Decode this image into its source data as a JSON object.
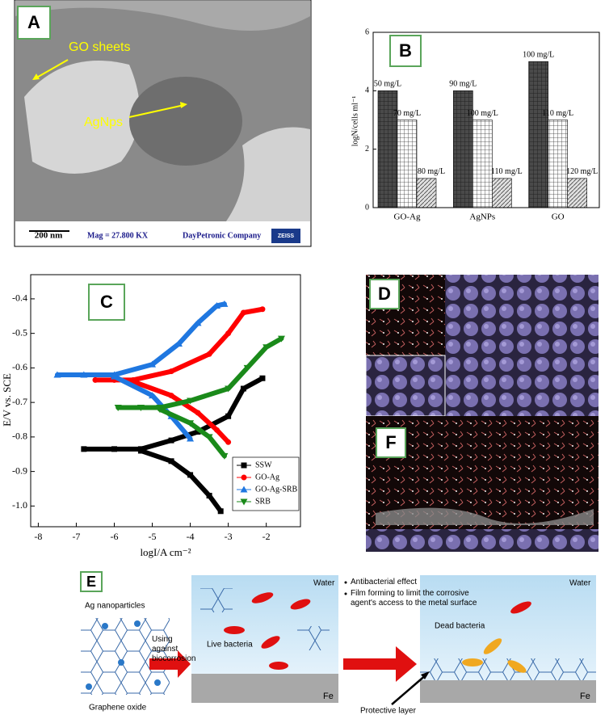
{
  "panel_a": {
    "label": "A",
    "annotations": [
      "GO sheets",
      "AgNps"
    ],
    "scale_bar": "200 nm",
    "magnification": "Mag = 27.800 KX",
    "company": "DayPetronic Company",
    "logo": "ZEISS"
  },
  "chart_data": [
    {
      "type": "bar",
      "label": "B",
      "ylabel": "logN/cells ml⁻¹",
      "categories": [
        "GO-Ag",
        "AgNPs",
        "GO"
      ],
      "series": [
        {
          "color": "#4a4a4a",
          "values": [
            4,
            4,
            5
          ],
          "labels": [
            "50 mg/L",
            "90 mg/L",
            "100 mg/L"
          ]
        },
        {
          "color": "#ffffff",
          "values": [
            3,
            3,
            3
          ],
          "labels": [
            "70 mg/L",
            "100 mg/L",
            "110 mg/L"
          ]
        },
        {
          "color": "#d8d8d8",
          "values": [
            1,
            1,
            1
          ],
          "labels": [
            "80 mg/L",
            "110 mg/L",
            "120 mg/L"
          ]
        }
      ],
      "ylim": [
        0,
        6
      ],
      "yticks": [
        0,
        2,
        4,
        6
      ]
    },
    {
      "type": "line",
      "label": "C",
      "xlabel": "logI/A cm⁻²",
      "ylabel": "E/V vs. SCE",
      "xlim": [
        -8.2,
        -1.1
      ],
      "xticks": [
        -8,
        -7,
        -6,
        -5,
        -4,
        -3,
        -2
      ],
      "ylim": [
        -1.06,
        -0.33
      ],
      "yticks": [
        {
          "value": -1,
          "label": "-1.0"
        },
        -0.9,
        -0.8,
        -0.7,
        -0.6,
        -0.5,
        -0.4
      ],
      "legend": "lower right",
      "series": [
        {
          "name": "SSW",
          "color": "#000000",
          "marker": "square",
          "x": [
            -6.8,
            -6.0,
            -5.3,
            -4.5,
            -3.8,
            -3.0,
            -2.6,
            -2.1,
            null,
            -5.3,
            -4.5,
            -4.0,
            -3.5,
            -3.2
          ],
          "values": [
            -0.835,
            -0.835,
            -0.835,
            -0.81,
            -0.785,
            -0.74,
            -0.66,
            -0.63,
            null,
            -0.84,
            -0.87,
            -0.91,
            -0.97,
            -1.015
          ]
        },
        {
          "name": "GO-Ag",
          "color": "#ff0000",
          "marker": "circle",
          "x": [
            -6.5,
            -6.0,
            -5.5,
            -4.5,
            -3.5,
            -3.0,
            -2.6,
            -2.1,
            null,
            -5.5,
            -4.5,
            -3.8,
            -3.3,
            -3.0
          ],
          "values": [
            -0.635,
            -0.635,
            -0.635,
            -0.61,
            -0.56,
            -0.5,
            -0.44,
            -0.43,
            null,
            -0.64,
            -0.68,
            -0.73,
            -0.78,
            -0.815
          ]
        },
        {
          "name": "GO-Ag-SRB",
          "color": "#1f77e0",
          "marker": "triangle",
          "x": [
            -7.5,
            -6.8,
            -6.0,
            -5.0,
            -4.3,
            -3.8,
            -3.3,
            -3.1,
            null,
            -6.0,
            -5.0,
            -4.5,
            -4.0
          ],
          "values": [
            -0.62,
            -0.62,
            -0.62,
            -0.59,
            -0.53,
            -0.47,
            -0.42,
            -0.415,
            null,
            -0.625,
            -0.68,
            -0.74,
            -0.805
          ]
        },
        {
          "name": "SRB",
          "color": "#1a8a1a",
          "marker": "triangle-down",
          "x": [
            -5.9,
            -5.3,
            -4.8,
            -4.0,
            -3.0,
            -2.5,
            -2.0,
            -1.6,
            null,
            -4.8,
            -4.0,
            -3.5,
            -3.1
          ],
          "values": [
            -0.715,
            -0.715,
            -0.715,
            -0.695,
            -0.66,
            -0.6,
            -0.54,
            -0.515,
            null,
            -0.72,
            -0.76,
            -0.8,
            -0.855
          ]
        }
      ]
    }
  ],
  "panel_d": {
    "label": "D"
  },
  "panel_f": {
    "label": "F"
  },
  "panel_e": {
    "label": "E",
    "nanoparticles": "Ag nanoparticles",
    "graphene": "Graphene oxide",
    "arrow_text": "Using against biocorrosion",
    "water_left": "Water",
    "live_bacteria": "Live bacteria",
    "fe_left": "Fe",
    "bullets": [
      "Antibacterial effect",
      "Film forming to limit the corrosive agent's access to the metal surface"
    ],
    "water_right": "Water",
    "dead_bacteria": "Dead bacteria",
    "protective_layer": "Protective layer",
    "fe_right": "Fe"
  }
}
